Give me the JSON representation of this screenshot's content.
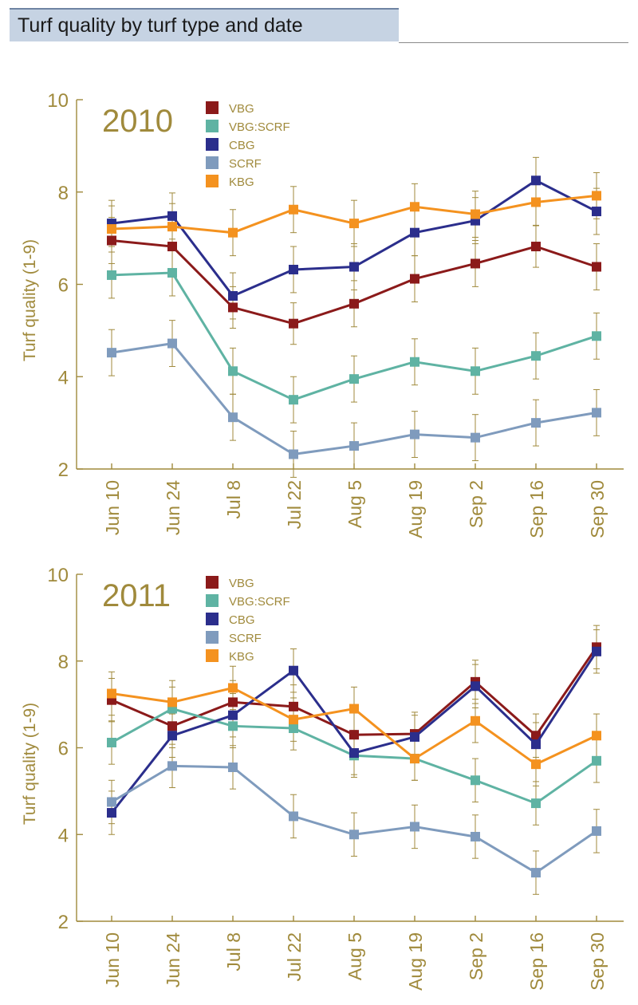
{
  "header": {
    "title": "Turf quality by turf type and date"
  },
  "colors": {
    "axis": "#a08a3c",
    "VBG": "#8b1a1a",
    "VBG:SCRF": "#5fb3a3",
    "CBG": "#2b2e8c",
    "SCRF": "#7f9bbd",
    "KBG": "#f4921f"
  },
  "chart_data": [
    {
      "type": "line",
      "title": "2010",
      "ylabel": "Turf quality (1-9)",
      "xlabel": "",
      "ylim": [
        2,
        10
      ],
      "yticks": [
        2,
        4,
        6,
        8,
        10
      ],
      "categories": [
        "Jun 10",
        "Jun 24",
        "Jul 8",
        "Jul 22",
        "Aug 5",
        "Aug 19",
        "Sep 2",
        "Sep 16",
        "Sep 30"
      ],
      "legend_position": "top",
      "error_bars": true,
      "series": [
        {
          "name": "VBG",
          "color": "#8b1a1a",
          "values": [
            6.95,
            6.82,
            5.5,
            5.15,
            5.58,
            6.12,
            6.45,
            6.82,
            6.38
          ],
          "errors": [
            0.5,
            0.5,
            0.45,
            0.45,
            0.5,
            0.5,
            0.5,
            0.45,
            0.5
          ]
        },
        {
          "name": "VBG:SCRF",
          "color": "#5fb3a3",
          "values": [
            6.2,
            6.25,
            4.12,
            3.5,
            3.95,
            4.32,
            4.12,
            4.45,
            4.88
          ],
          "errors": [
            0.5,
            0.5,
            0.5,
            0.5,
            0.5,
            0.5,
            0.5,
            0.5,
            0.5
          ]
        },
        {
          "name": "CBG",
          "color": "#2b2e8c",
          "values": [
            7.32,
            7.48,
            5.75,
            6.32,
            6.38,
            7.12,
            7.38,
            8.25,
            7.58
          ],
          "errors": [
            0.5,
            0.5,
            0.5,
            0.5,
            0.5,
            0.5,
            0.5,
            0.5,
            0.5
          ]
        },
        {
          "name": "SCRF",
          "color": "#7f9bbd",
          "values": [
            4.52,
            4.72,
            3.12,
            2.32,
            2.5,
            2.75,
            2.68,
            3.0,
            3.22
          ],
          "errors": [
            0.5,
            0.5,
            0.5,
            0.5,
            0.5,
            0.5,
            0.5,
            0.5,
            0.5
          ]
        },
        {
          "name": "KBG",
          "color": "#f4921f",
          "values": [
            7.2,
            7.25,
            7.12,
            7.62,
            7.32,
            7.68,
            7.52,
            7.78,
            7.92
          ],
          "errors": [
            0.5,
            0.5,
            0.5,
            0.5,
            0.5,
            0.5,
            0.5,
            0.5,
            0.5
          ]
        }
      ]
    },
    {
      "type": "line",
      "title": "2011",
      "ylabel": "Turf quality (1-9)",
      "xlabel": "",
      "ylim": [
        2,
        10
      ],
      "yticks": [
        2,
        4,
        6,
        8,
        10
      ],
      "categories": [
        "Jun 10",
        "Jun 24",
        "Jul 8",
        "Jul 22",
        "Aug 5",
        "Aug 19",
        "Sep 2",
        "Sep 16",
        "Sep 30"
      ],
      "legend_position": "top",
      "error_bars": true,
      "series": [
        {
          "name": "VBG",
          "color": "#8b1a1a",
          "values": [
            7.1,
            6.5,
            7.05,
            6.95,
            6.3,
            6.32,
            7.52,
            6.28,
            8.32
          ],
          "errors": [
            0.5,
            0.5,
            0.5,
            0.5,
            0.5,
            0.5,
            0.5,
            0.5,
            0.5
          ]
        },
        {
          "name": "VBG:SCRF",
          "color": "#5fb3a3",
          "values": [
            6.12,
            6.9,
            6.5,
            6.45,
            5.82,
            5.75,
            5.25,
            4.72,
            5.7
          ],
          "errors": [
            0.5,
            0.5,
            0.5,
            0.5,
            0.5,
            0.5,
            0.5,
            0.5,
            0.5
          ]
        },
        {
          "name": "CBG",
          "color": "#2b2e8c",
          "values": [
            4.5,
            6.28,
            6.75,
            7.78,
            5.88,
            6.25,
            7.42,
            6.08,
            8.22
          ],
          "errors": [
            0.5,
            0.5,
            0.5,
            0.5,
            0.5,
            0.5,
            0.5,
            0.5,
            0.5
          ]
        },
        {
          "name": "SCRF",
          "color": "#7f9bbd",
          "values": [
            4.75,
            5.58,
            5.55,
            4.42,
            4.0,
            4.18,
            3.95,
            3.12,
            4.08
          ],
          "errors": [
            0.5,
            0.5,
            0.5,
            0.5,
            0.5,
            0.5,
            0.5,
            0.5,
            0.5
          ]
        },
        {
          "name": "KBG",
          "color": "#f4921f",
          "values": [
            7.25,
            7.05,
            7.38,
            6.65,
            6.9,
            5.75,
            6.62,
            5.62,
            6.28
          ],
          "errors": [
            0.5,
            0.5,
            0.5,
            0.5,
            0.5,
            0.5,
            0.5,
            0.5,
            0.5
          ]
        }
      ]
    }
  ]
}
